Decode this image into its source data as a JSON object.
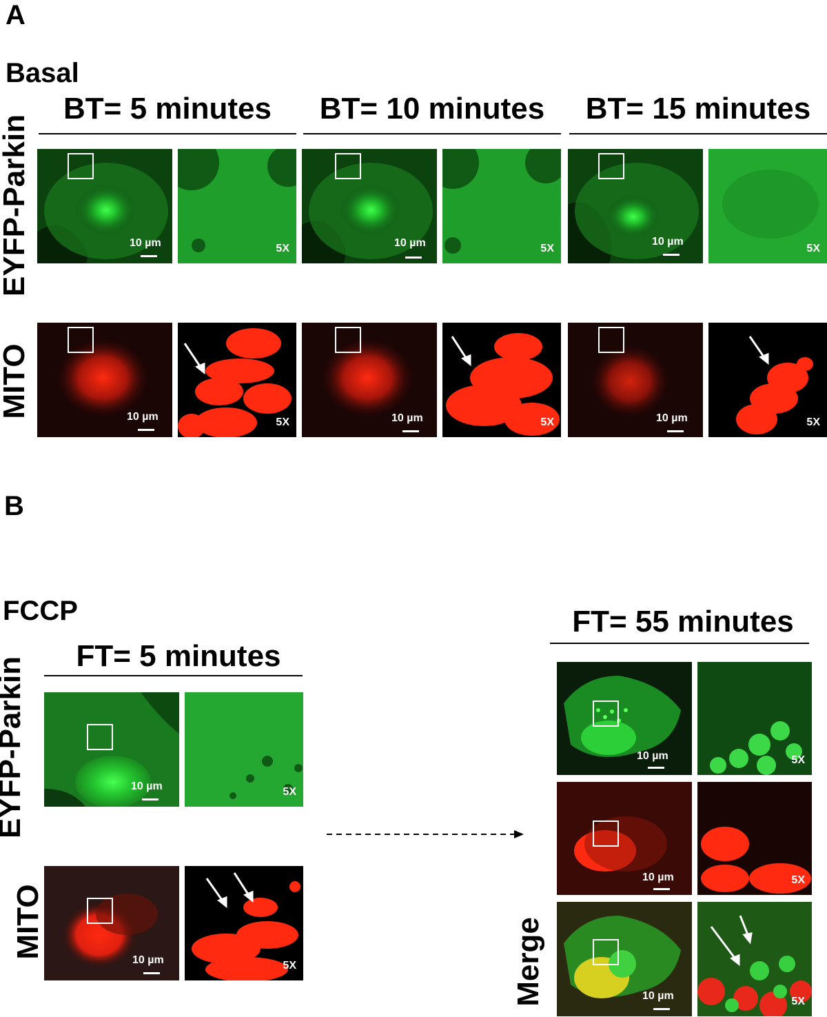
{
  "panel_a": {
    "letter": "A",
    "condition": "Basal",
    "columns": [
      "BT= 5 minutes",
      "BT= 10 minutes",
      "BT= 15 minutes"
    ],
    "rows": [
      "EYFP-Parkin",
      "MITO"
    ]
  },
  "panel_b": {
    "letter": "B",
    "condition": "FCCP",
    "left_title": "FT= 5 minutes",
    "right_title": "FT= 55 minutes",
    "rows": [
      "EYFP-Parkin",
      "MITO"
    ],
    "merge_label": "Merge"
  },
  "scale_bar": "10 µm",
  "zoom": "5X",
  "colors": {
    "green_channel": "#22c433",
    "red_channel": "#ff2a10",
    "background": "#ffffff"
  }
}
